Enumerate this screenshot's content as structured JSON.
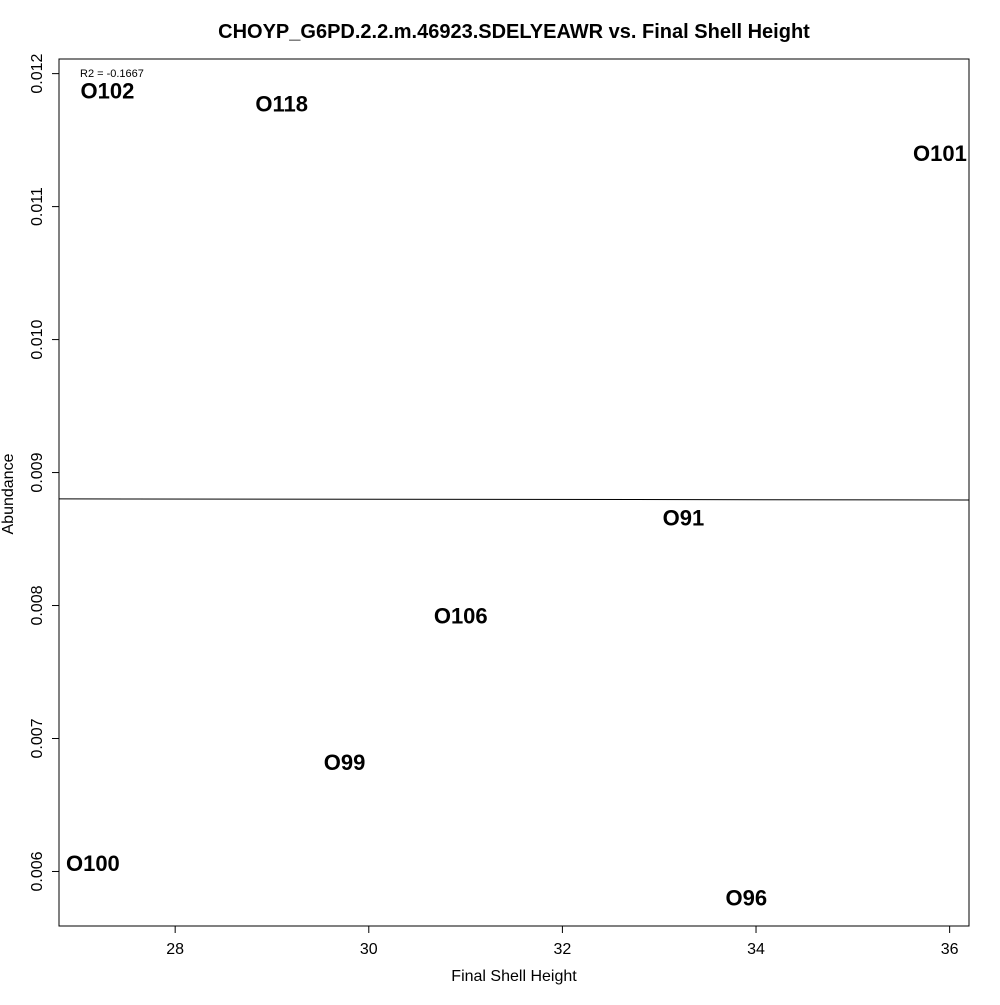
{
  "chart_data": {
    "type": "scatter",
    "title": "CHOYP_G6PD.2.2.m.46923.SDELYEAWR vs. Final Shell Height",
    "xlabel": "Final Shell Height",
    "ylabel": "Abundance",
    "xlim": [
      26.8,
      36.2
    ],
    "ylim": [
      0.00559,
      0.01211
    ],
    "x_ticks": [
      28,
      30,
      32,
      34,
      36
    ],
    "y_ticks": [
      0.006,
      0.007,
      0.008,
      0.009,
      0.01,
      0.011,
      0.012
    ],
    "x_tick_labels": [
      "28",
      "30",
      "32",
      "34",
      "36"
    ],
    "y_tick_labels": [
      "0.006",
      "0.007",
      "0.008",
      "0.009",
      "0.010",
      "0.011",
      "0.012"
    ],
    "grid": false,
    "points": [
      {
        "label": "O102",
        "x": 27.3,
        "y": 0.01187
      },
      {
        "label": "O118",
        "x": 29.1,
        "y": 0.01177
      },
      {
        "label": "O101",
        "x": 35.9,
        "y": 0.0114
      },
      {
        "label": "O91",
        "x": 33.25,
        "y": 0.00866
      },
      {
        "label": "O106",
        "x": 30.95,
        "y": 0.00792
      },
      {
        "label": "O99",
        "x": 29.75,
        "y": 0.00682
      },
      {
        "label": "O100",
        "x": 27.15,
        "y": 0.00606
      },
      {
        "label": "O96",
        "x": 33.9,
        "y": 0.0058
      }
    ],
    "regression_line": {
      "x": [
        26.8,
        36.2
      ],
      "y": [
        0.008802,
        0.008794
      ]
    },
    "annotation": "R2 = -0.1667"
  }
}
